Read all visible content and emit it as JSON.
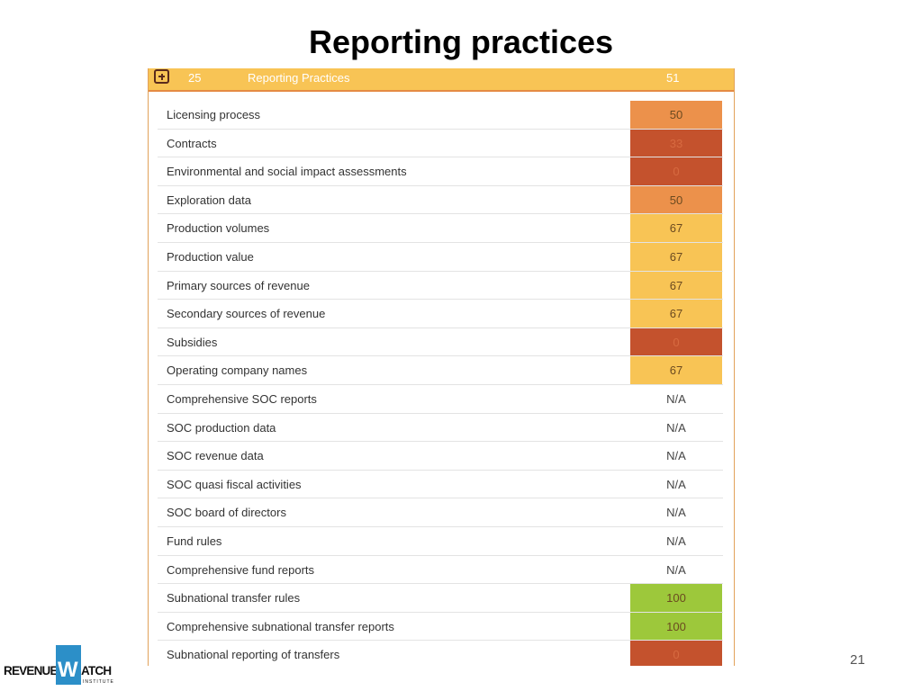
{
  "slide": {
    "title": "Reporting practices",
    "page_number": "21"
  },
  "section": {
    "index": "25",
    "label": "Reporting Practices",
    "score": "51"
  },
  "colors": {
    "header_bg": "#f8c455",
    "score_high": "#9dc83b",
    "score_mid": "#f8c455",
    "score_moderate": "#ec914b",
    "score_low": "#c4522d"
  },
  "rows": [
    {
      "label": "Licensing process",
      "score": "50",
      "color": "#ec914b"
    },
    {
      "label": "Contracts",
      "score": "33",
      "color": "#c4522d"
    },
    {
      "label": "Environmental and social impact assessments",
      "score": "0",
      "color": "#c4522d"
    },
    {
      "label": "Exploration data",
      "score": "50",
      "color": "#ec914b"
    },
    {
      "label": "Production volumes",
      "score": "67",
      "color": "#f8c455"
    },
    {
      "label": "Production value",
      "score": "67",
      "color": "#f8c455"
    },
    {
      "label": "Primary sources of revenue",
      "score": "67",
      "color": "#f8c455"
    },
    {
      "label": "Secondary sources of revenue",
      "score": "67",
      "color": "#f8c455"
    },
    {
      "label": "Subsidies",
      "score": "0",
      "color": "#c4522d"
    },
    {
      "label": "Operating company names",
      "score": "67",
      "color": "#f8c455"
    },
    {
      "label": "Comprehensive SOC reports",
      "score": "N/A",
      "color": ""
    },
    {
      "label": "SOC production data",
      "score": "N/A",
      "color": ""
    },
    {
      "label": "SOC revenue data",
      "score": "N/A",
      "color": ""
    },
    {
      "label": "SOC quasi fiscal activities",
      "score": "N/A",
      "color": ""
    },
    {
      "label": "SOC board of directors",
      "score": "N/A",
      "color": ""
    },
    {
      "label": "Fund rules",
      "score": "N/A",
      "color": ""
    },
    {
      "label": "Comprehensive fund reports",
      "score": "N/A",
      "color": ""
    },
    {
      "label": "Subnational transfer rules",
      "score": "100",
      "color": "#9dc83b"
    },
    {
      "label": "Comprehensive subnational transfer reports",
      "score": "100",
      "color": "#9dc83b"
    },
    {
      "label": "Subnational reporting of transfers",
      "score": "0",
      "color": "#c4522d"
    }
  ],
  "logo": {
    "left": "REVENUE",
    "mark": "W",
    "right": "ATCH",
    "sub": "INSTITUTE",
    "mark_color": "#2c8fc8"
  }
}
